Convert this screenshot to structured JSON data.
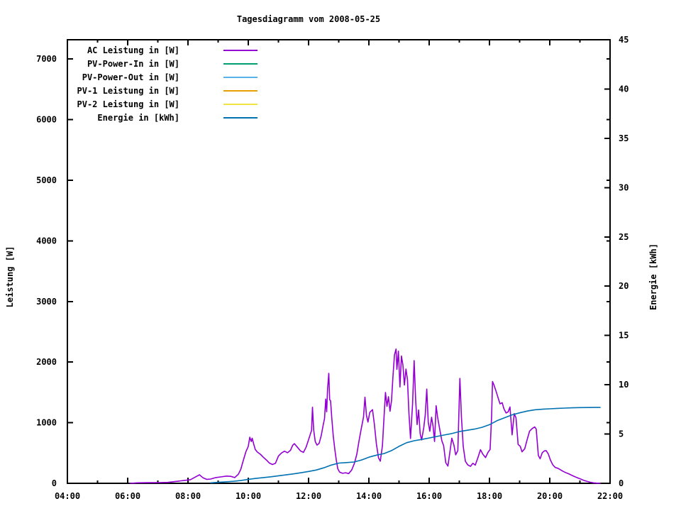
{
  "colors": {
    "background": "#ffffff",
    "foreground": "#000000"
  },
  "chart_data": {
    "type": "line",
    "title": "Tagesdiagramm vom 2008-05-25",
    "grid": false,
    "legend_position": "top-left-inside",
    "x_range": [
      4,
      22
    ],
    "x_ticks": [
      {
        "v": 4,
        "label": "04:00"
      },
      {
        "v": 6,
        "label": "06:00"
      },
      {
        "v": 8,
        "label": "08:00"
      },
      {
        "v": 10,
        "label": "10:00"
      },
      {
        "v": 12,
        "label": "12:00"
      },
      {
        "v": 14,
        "label": "14:00"
      },
      {
        "v": 16,
        "label": "16:00"
      },
      {
        "v": 18,
        "label": "18:00"
      },
      {
        "v": 20,
        "label": "20:00"
      },
      {
        "v": 22,
        "label": "22:00"
      }
    ],
    "x_minor_ticks": [
      5,
      7,
      9,
      11,
      13,
      15,
      17,
      19,
      21
    ],
    "y_axis": {
      "label": "Leistung [W]",
      "range": [
        0,
        7318
      ],
      "ticks": [
        0,
        1000,
        2000,
        3000,
        4000,
        5000,
        6000,
        7000
      ]
    },
    "y2_axis": {
      "label": "Energie [kWh]",
      "range": [
        0,
        45
      ],
      "ticks": [
        0,
        5,
        10,
        15,
        20,
        25,
        30,
        35,
        40,
        45
      ]
    },
    "series": [
      {
        "name": "AC Leistung in [W]",
        "color": "#9400D3",
        "axis": "y",
        "points": [
          [
            6.08,
            0
          ],
          [
            6.33,
            8
          ],
          [
            6.67,
            10
          ],
          [
            7.0,
            12
          ],
          [
            7.33,
            15
          ],
          [
            7.58,
            30
          ],
          [
            7.83,
            45
          ],
          [
            8.08,
            60
          ],
          [
            8.3,
            120
          ],
          [
            8.38,
            140
          ],
          [
            8.5,
            90
          ],
          [
            8.62,
            65
          ],
          [
            8.75,
            70
          ],
          [
            8.92,
            95
          ],
          [
            9.08,
            105
          ],
          [
            9.28,
            120
          ],
          [
            9.42,
            115
          ],
          [
            9.55,
            95
          ],
          [
            9.67,
            150
          ],
          [
            9.75,
            230
          ],
          [
            9.83,
            370
          ],
          [
            9.92,
            520
          ],
          [
            10.0,
            610
          ],
          [
            10.05,
            760
          ],
          [
            10.1,
            690
          ],
          [
            10.13,
            745
          ],
          [
            10.18,
            650
          ],
          [
            10.23,
            560
          ],
          [
            10.3,
            515
          ],
          [
            10.4,
            480
          ],
          [
            10.5,
            430
          ],
          [
            10.6,
            385
          ],
          [
            10.7,
            335
          ],
          [
            10.8,
            310
          ],
          [
            10.9,
            330
          ],
          [
            11.0,
            450
          ],
          [
            11.1,
            500
          ],
          [
            11.2,
            530
          ],
          [
            11.3,
            505
          ],
          [
            11.4,
            545
          ],
          [
            11.47,
            625
          ],
          [
            11.53,
            655
          ],
          [
            11.63,
            595
          ],
          [
            11.73,
            535
          ],
          [
            11.83,
            510
          ],
          [
            11.92,
            600
          ],
          [
            12.0,
            720
          ],
          [
            12.07,
            830
          ],
          [
            12.1,
            870
          ],
          [
            12.13,
            1255
          ],
          [
            12.17,
            880
          ],
          [
            12.22,
            690
          ],
          [
            12.28,
            630
          ],
          [
            12.35,
            660
          ],
          [
            12.42,
            790
          ],
          [
            12.48,
            950
          ],
          [
            12.53,
            1070
          ],
          [
            12.57,
            1390
          ],
          [
            12.6,
            1180
          ],
          [
            12.63,
            1560
          ],
          [
            12.67,
            1815
          ],
          [
            12.7,
            1380
          ],
          [
            12.73,
            1360
          ],
          [
            12.77,
            1080
          ],
          [
            12.82,
            780
          ],
          [
            12.87,
            560
          ],
          [
            12.92,
            380
          ],
          [
            12.97,
            240
          ],
          [
            13.03,
            185
          ],
          [
            13.13,
            165
          ],
          [
            13.23,
            175
          ],
          [
            13.33,
            160
          ],
          [
            13.43,
            220
          ],
          [
            13.52,
            330
          ],
          [
            13.6,
            480
          ],
          [
            13.68,
            720
          ],
          [
            13.75,
            910
          ],
          [
            13.82,
            1090
          ],
          [
            13.87,
            1420
          ],
          [
            13.92,
            1120
          ],
          [
            13.97,
            1010
          ],
          [
            14.03,
            1170
          ],
          [
            14.12,
            1215
          ],
          [
            14.18,
            980
          ],
          [
            14.25,
            650
          ],
          [
            14.32,
            420
          ],
          [
            14.38,
            365
          ],
          [
            14.45,
            620
          ],
          [
            14.5,
            1080
          ],
          [
            14.55,
            1500
          ],
          [
            14.6,
            1270
          ],
          [
            14.65,
            1430
          ],
          [
            14.7,
            1190
          ],
          [
            14.75,
            1360
          ],
          [
            14.8,
            1770
          ],
          [
            14.85,
            2120
          ],
          [
            14.9,
            2215
          ],
          [
            14.93,
            1880
          ],
          [
            14.98,
            2180
          ],
          [
            15.03,
            1590
          ],
          [
            15.08,
            2100
          ],
          [
            15.13,
            1950
          ],
          [
            15.18,
            1620
          ],
          [
            15.23,
            1885
          ],
          [
            15.28,
            1710
          ],
          [
            15.33,
            1150
          ],
          [
            15.38,
            740
          ],
          [
            15.45,
            1310
          ],
          [
            15.5,
            2025
          ],
          [
            15.55,
            1380
          ],
          [
            15.6,
            970
          ],
          [
            15.65,
            1210
          ],
          [
            15.7,
            820
          ],
          [
            15.75,
            715
          ],
          [
            15.82,
            920
          ],
          [
            15.87,
            1130
          ],
          [
            15.92,
            1555
          ],
          [
            15.97,
            1010
          ],
          [
            16.02,
            860
          ],
          [
            16.08,
            1090
          ],
          [
            16.13,
            940
          ],
          [
            16.18,
            690
          ],
          [
            16.23,
            1280
          ],
          [
            16.28,
            1090
          ],
          [
            16.35,
            890
          ],
          [
            16.42,
            700
          ],
          [
            16.48,
            620
          ],
          [
            16.55,
            340
          ],
          [
            16.62,
            285
          ],
          [
            16.68,
            490
          ],
          [
            16.75,
            745
          ],
          [
            16.82,
            630
          ],
          [
            16.88,
            470
          ],
          [
            16.95,
            540
          ],
          [
            17.02,
            1730
          ],
          [
            17.07,
            1090
          ],
          [
            17.13,
            610
          ],
          [
            17.2,
            365
          ],
          [
            17.28,
            305
          ],
          [
            17.37,
            280
          ],
          [
            17.45,
            330
          ],
          [
            17.53,
            300
          ],
          [
            17.62,
            430
          ],
          [
            17.7,
            555
          ],
          [
            17.78,
            480
          ],
          [
            17.87,
            425
          ],
          [
            17.95,
            510
          ],
          [
            18.02,
            560
          ],
          [
            18.07,
            1100
          ],
          [
            18.1,
            1680
          ],
          [
            18.15,
            1620
          ],
          [
            18.22,
            1520
          ],
          [
            18.28,
            1420
          ],
          [
            18.35,
            1310
          ],
          [
            18.42,
            1330
          ],
          [
            18.48,
            1230
          ],
          [
            18.55,
            1160
          ],
          [
            18.62,
            1180
          ],
          [
            18.68,
            1260
          ],
          [
            18.75,
            800
          ],
          [
            18.82,
            1150
          ],
          [
            18.88,
            1080
          ],
          [
            18.95,
            640
          ],
          [
            19.02,
            610
          ],
          [
            19.08,
            520
          ],
          [
            19.17,
            570
          ],
          [
            19.25,
            720
          ],
          [
            19.33,
            860
          ],
          [
            19.42,
            905
          ],
          [
            19.5,
            930
          ],
          [
            19.55,
            895
          ],
          [
            19.62,
            460
          ],
          [
            19.68,
            405
          ],
          [
            19.75,
            505
          ],
          [
            19.82,
            535
          ],
          [
            19.88,
            540
          ],
          [
            19.95,
            485
          ],
          [
            20.02,
            385
          ],
          [
            20.1,
            305
          ],
          [
            20.18,
            262
          ],
          [
            20.27,
            248
          ],
          [
            20.35,
            225
          ],
          [
            20.45,
            195
          ],
          [
            20.55,
            172
          ],
          [
            20.65,
            152
          ],
          [
            20.75,
            128
          ],
          [
            20.85,
            105
          ],
          [
            20.95,
            85
          ],
          [
            21.05,
            65
          ],
          [
            21.15,
            45
          ],
          [
            21.25,
            30
          ],
          [
            21.35,
            18
          ],
          [
            21.45,
            8
          ],
          [
            21.55,
            3
          ],
          [
            21.67,
            0
          ]
        ]
      },
      {
        "name": "PV-Power-In in [W]",
        "color": "#009E73",
        "axis": "y",
        "points": []
      },
      {
        "name": "PV-Power-Out in [W]",
        "color": "#56B4E9",
        "axis": "y",
        "points": []
      },
      {
        "name": "PV-1 Leistung in [W]",
        "color": "#E69F00",
        "axis": "y",
        "points": []
      },
      {
        "name": "PV-2 Leistung in [W]",
        "color": "#F0E442",
        "axis": "y",
        "points": []
      },
      {
        "name": "Energie in [kWh]",
        "color": "#0072B2",
        "axis": "y2",
        "points": [
          [
            8.75,
            0.05
          ],
          [
            9.0,
            0.1
          ],
          [
            9.25,
            0.15
          ],
          [
            9.5,
            0.2
          ],
          [
            9.75,
            0.28
          ],
          [
            10.0,
            0.4
          ],
          [
            10.25,
            0.5
          ],
          [
            10.5,
            0.58
          ],
          [
            10.75,
            0.66
          ],
          [
            11.0,
            0.76
          ],
          [
            11.25,
            0.86
          ],
          [
            11.5,
            0.96
          ],
          [
            11.75,
            1.07
          ],
          [
            12.0,
            1.2
          ],
          [
            12.25,
            1.35
          ],
          [
            12.5,
            1.57
          ],
          [
            12.75,
            1.85
          ],
          [
            13.0,
            2.05
          ],
          [
            13.25,
            2.1
          ],
          [
            13.5,
            2.16
          ],
          [
            13.75,
            2.36
          ],
          [
            14.0,
            2.65
          ],
          [
            14.25,
            2.86
          ],
          [
            14.5,
            3.02
          ],
          [
            14.75,
            3.32
          ],
          [
            15.0,
            3.75
          ],
          [
            15.25,
            4.12
          ],
          [
            15.5,
            4.32
          ],
          [
            15.75,
            4.45
          ],
          [
            16.0,
            4.6
          ],
          [
            16.25,
            4.75
          ],
          [
            16.5,
            4.9
          ],
          [
            16.75,
            5.05
          ],
          [
            17.0,
            5.25
          ],
          [
            17.25,
            5.38
          ],
          [
            17.5,
            5.5
          ],
          [
            17.75,
            5.68
          ],
          [
            18.0,
            5.95
          ],
          [
            18.25,
            6.35
          ],
          [
            18.5,
            6.65
          ],
          [
            18.75,
            6.95
          ],
          [
            19.0,
            7.15
          ],
          [
            19.25,
            7.33
          ],
          [
            19.5,
            7.46
          ],
          [
            19.75,
            7.52
          ],
          [
            20.0,
            7.56
          ],
          [
            20.25,
            7.6
          ],
          [
            20.5,
            7.63
          ],
          [
            20.75,
            7.66
          ],
          [
            21.0,
            7.68
          ],
          [
            21.25,
            7.69
          ],
          [
            21.5,
            7.7
          ],
          [
            21.67,
            7.7
          ]
        ]
      }
    ]
  }
}
